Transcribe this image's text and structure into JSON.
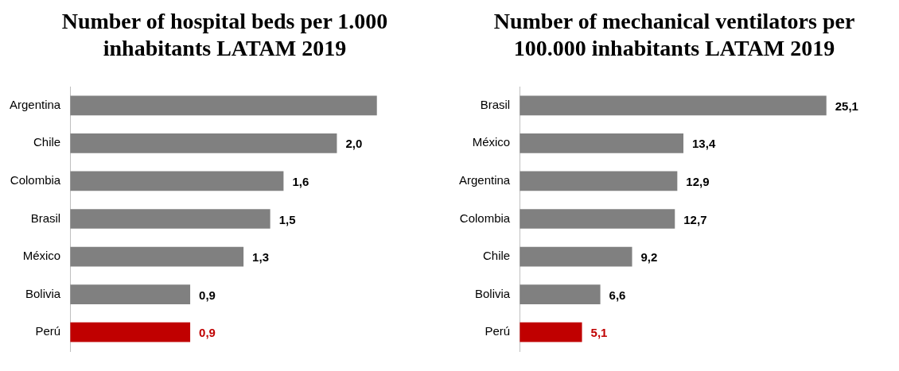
{
  "chart_data": [
    {
      "type": "bar",
      "orientation": "horizontal",
      "title": "Number of hospital beds per 1.000 inhabitants LATAM 2019",
      "categories": [
        "Argentina",
        "Chile",
        "Colombia",
        "Brasil",
        "México",
        "Bolivia",
        "Perú"
      ],
      "values": [
        2.3,
        2.0,
        1.6,
        1.5,
        1.3,
        0.9,
        0.9
      ],
      "colors": [
        "#808080",
        "#808080",
        "#808080",
        "#808080",
        "#808080",
        "#808080",
        "#c00000"
      ],
      "value_labels": [
        null,
        "2,0",
        "1,6",
        "1,5",
        "1,3",
        "0,9",
        "0,9"
      ]
    },
    {
      "type": "bar",
      "orientation": "horizontal",
      "title": "Number of mechanical ventilators per 100.000 inhabitants LATAM 2019",
      "categories": [
        "Brasil",
        "México",
        "Argentina",
        "Colombia",
        "Chile",
        "Bolivia",
        "Perú"
      ],
      "values": [
        25.1,
        13.4,
        12.9,
        12.7,
        9.2,
        6.6,
        5.1
      ],
      "colors": [
        "#808080",
        "#808080",
        "#808080",
        "#808080",
        "#808080",
        "#808080",
        "#c00000"
      ],
      "value_labels": [
        "25,1",
        "13,4",
        "12,9",
        "12,7",
        "9,2",
        "6,6",
        "5,1"
      ]
    }
  ]
}
